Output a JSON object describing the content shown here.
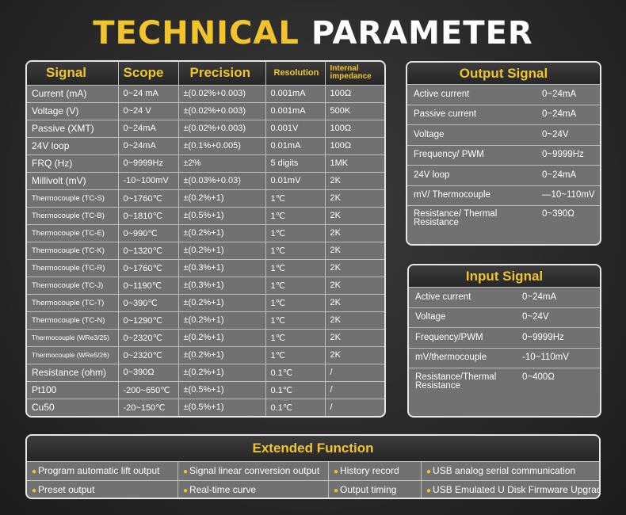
{
  "title": {
    "part1": "TECHNICAL",
    "part2": "PARAMETER"
  },
  "main_table": {
    "headers": [
      "Signal",
      "Scope",
      "Precision",
      "Resolution",
      "Internal impedance"
    ],
    "rows": [
      [
        "Current (mA)",
        "0~24 mA",
        "±(0.02%+0.003)",
        "0.001mA",
        "100Ω"
      ],
      [
        "Voltage (V)",
        "0~24 V",
        "±(0.02%+0.003)",
        "0.001mA",
        "500K"
      ],
      [
        "Passive (XMT)",
        "0~24mA",
        "±(0.02%+0.003)",
        "0.001V",
        "100Ω"
      ],
      [
        "24V loop",
        "0~24mA",
        "±(0.1%+0.005)",
        "0.01mA",
        "100Ω"
      ],
      [
        "FRQ (Hz)",
        "0~9999Hz",
        "±2%",
        "5 digits",
        "1MK"
      ],
      [
        "Millivolt (mV)",
        "-10~100mV",
        "±(0.03%+0.03)",
        "0.01mV",
        "2K"
      ],
      [
        "Thermocouple (TC-S)",
        "0~1760℃",
        "±(0.2%+1)",
        "1℃",
        "2K"
      ],
      [
        "Thermocouple (TC-B)",
        "0~1810℃",
        "±(0.5%+1)",
        "1℃",
        "2K"
      ],
      [
        "Thermocouple (TC-E)",
        "0~990℃",
        "±(0.2%+1)",
        "1℃",
        "2K"
      ],
      [
        "Thermocouple (TC-K)",
        "0~1320℃",
        "±(0.2%+1)",
        "1℃",
        "2K"
      ],
      [
        "Thermocouple (TC-R)",
        "0~1760℃",
        "±(0.3%+1)",
        "1℃",
        "2K"
      ],
      [
        "Thermocouple (TC-J)",
        "0~1190℃",
        "±(0.3%+1)",
        "1℃",
        "2K"
      ],
      [
        "Thermocouple (TC-T)",
        "0~390℃",
        "±(0.2%+1)",
        "1℃",
        "2K"
      ],
      [
        "Thermocouple (TC-N)",
        "0~1290℃",
        "±(0.2%+1)",
        "1℃",
        "2K"
      ],
      [
        "Thermocouple (WRe3/25)",
        "0~2320℃",
        "±(0.2%+1)",
        "1℃",
        "2K"
      ],
      [
        "Thermocouple (WRe5/26)",
        "0~2320℃",
        "±(0.2%+1)",
        "1℃",
        "2K"
      ],
      [
        "Resistance (ohm)",
        "0~390Ω",
        "±(0.2%+1)",
        "0.1℃",
        "/"
      ],
      [
        "Pt100",
        "-200~650℃",
        "±(0.5%+1)",
        "0.1℃",
        "/"
      ],
      [
        "Cu50",
        "-20~150℃",
        "±(0.5%+1)",
        "0.1℃",
        "/"
      ]
    ]
  },
  "output_signal": {
    "title": "Output Signal",
    "rows": [
      [
        "Active current",
        "0~24mA"
      ],
      [
        "Passive current",
        "0~24mA"
      ],
      [
        "Voltage",
        "0~24V"
      ],
      [
        "Frequency/ PWM",
        "0~9999Hz"
      ],
      [
        "24V loop",
        "0~24mA"
      ],
      [
        "mV/ Thermocouple",
        "—10~110mV"
      ],
      [
        "Resistance/ Thermal Resistance",
        "0~390Ω"
      ]
    ]
  },
  "input_signal": {
    "title": "Input Signal",
    "rows": [
      [
        "Active current",
        "0~24mA"
      ],
      [
        "Voltage",
        "0~24V"
      ],
      [
        "Frequency/PWM",
        "0~9999Hz"
      ],
      [
        "mV/thermocouple",
        "-10~110mV"
      ],
      [
        "Resistance/Thermal Resistance",
        "0~400Ω"
      ]
    ]
  },
  "extended_function": {
    "title": "Extended Function",
    "row1": [
      "Program automatic lift output",
      "Signal linear conversion output",
      "History record",
      "USB analog serial communication"
    ],
    "row2": [
      "Preset output",
      "Real-time curve",
      "Output timing",
      "USB Emulated U Disk Firmware Upgrade"
    ]
  },
  "colors": {
    "accent": "#f2c42c",
    "panel": "#717171",
    "header": "#2f2f2f",
    "border": "#e6e6e6"
  }
}
